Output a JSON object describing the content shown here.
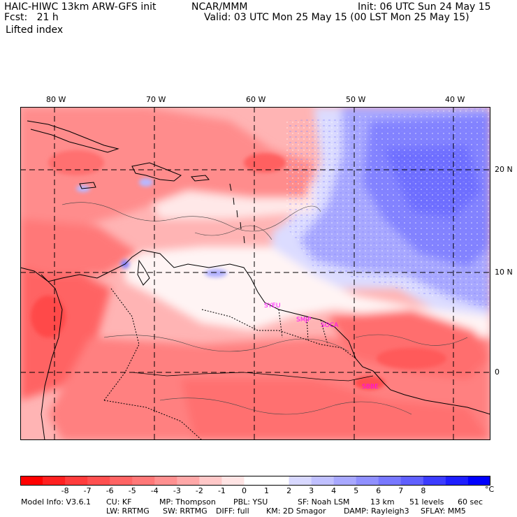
{
  "header": {
    "line1_left": "HAIC-HIWC 13km ARW-GFS init",
    "line1_mid": "NCAR/MMM",
    "line1_right": "Init: 06 UTC Sun 24 May 15",
    "line2_left": "Fcst:   21 h",
    "line2_right": "Valid: 03 UTC Mon 25 May 15 (00 LST Mon 25 May 15)",
    "field": "Lifted index"
  },
  "map": {
    "lon_labels": [
      "80 W",
      "70 W",
      "60 W",
      "50 W",
      "40 W"
    ],
    "lat_labels": [
      "20 N",
      "10 N",
      "0"
    ],
    "sites": [
      "SYEU",
      "SMJP",
      "SOCA",
      "SBBE"
    ],
    "colors": {
      "warm_dark": "#ff4040",
      "warm": "#ff7878",
      "warm_light": "#ffb4b4",
      "neutral": "#fff0f0",
      "cool_light": "#dcdcff",
      "cool": "#a0a0ff",
      "cool_dark": "#6e6eff",
      "site_label": "#ff00ff"
    }
  },
  "colorbar": {
    "colors": [
      "#ff0000",
      "#ff2020",
      "#ff3c3c",
      "#ff5050",
      "#ff6464",
      "#ff7878",
      "#ff9090",
      "#ffa8a8",
      "#ffc8c8",
      "#ffe4e4",
      "#ffffff",
      "#ffffff",
      "#d8d8ff",
      "#c0c0ff",
      "#a8a8ff",
      "#9090ff",
      "#7878ff",
      "#6060ff",
      "#3c3cff",
      "#1e1eff",
      "#0000ff"
    ],
    "labels": [
      "-8",
      "-7",
      "-6",
      "-5",
      "-4",
      "-3",
      "-2",
      "-1",
      "0",
      "1",
      "2",
      "3",
      "4",
      "5",
      "6",
      "7",
      "8"
    ],
    "unit": "°C"
  },
  "footer": {
    "line1": [
      {
        "k": "model_info",
        "text": "Model Info: V3.6.1"
      },
      {
        "k": "cu",
        "text": "CU: KF"
      },
      {
        "k": "mp",
        "text": "MP: Thompson"
      },
      {
        "k": "pbl",
        "text": "PBL: YSU"
      },
      {
        "k": "sf",
        "text": "SF: Noah LSM"
      },
      {
        "k": "res",
        "text": "13 km"
      },
      {
        "k": "levels",
        "text": "51 levels"
      },
      {
        "k": "dt",
        "text": "60 sec"
      }
    ],
    "line2": [
      {
        "k": "lw",
        "text": "LW: RRTMG"
      },
      {
        "k": "sw",
        "text": "SW: RRTMG"
      },
      {
        "k": "diff",
        "text": "DIFF: full"
      },
      {
        "k": "km",
        "text": "KM: 2D Smagor"
      },
      {
        "k": "damp",
        "text": "DAMP: Rayleigh3"
      },
      {
        "k": "sflay",
        "text": "SFLAY: MM5"
      }
    ]
  }
}
